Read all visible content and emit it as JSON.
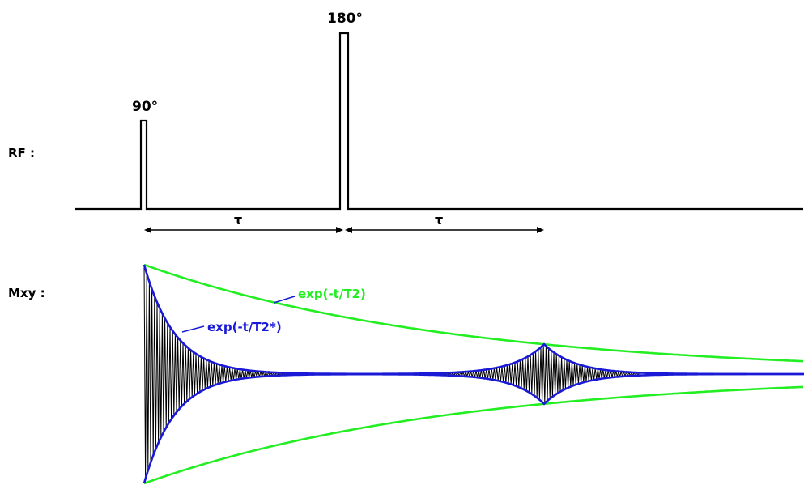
{
  "diagram": {
    "rows": {
      "rf_label": "RF :",
      "mxy_label": "Mxy :"
    },
    "pulses": {
      "p90_label": "90°",
      "p180_label": "180°"
    },
    "intervals": {
      "tau1_label": "τ",
      "tau2_label": "τ"
    },
    "curves": {
      "t2_label": "exp(-t/T2)",
      "t2star_label": "exp(-t/T2*)"
    },
    "colors": {
      "line": "#000000",
      "t2_envelope": "#22ee22",
      "t2star_envelope": "#1a1ad6",
      "signal": "#000000"
    }
  }
}
